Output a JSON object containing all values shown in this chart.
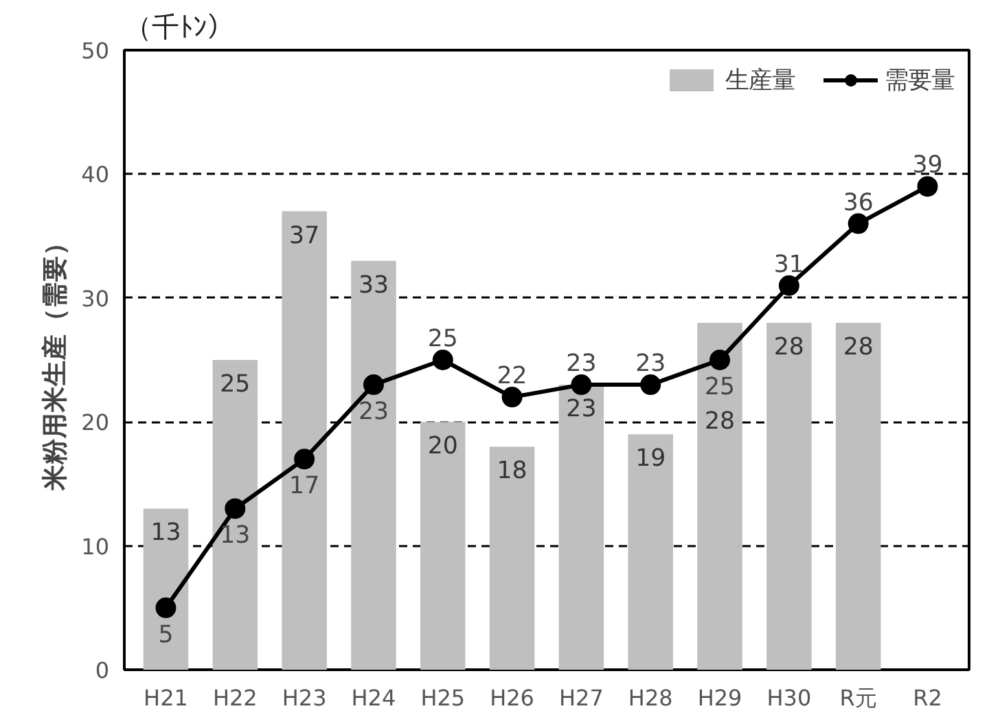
{
  "chart_data": {
    "type": "bar",
    "title": "（千ﾄﾝ）",
    "ylabel": "米粉用米生産（需要）",
    "categories": [
      "H21",
      "H22",
      "H23",
      "H24",
      "H25",
      "H26",
      "H27",
      "H28",
      "H29",
      "H30",
      "R元",
      "R2"
    ],
    "series": [
      {
        "name": "生産量",
        "color": "#bfbfbf",
        "values": [
          13,
          25,
          37,
          33,
          20,
          18,
          23,
          19,
          28,
          28,
          28,
          null
        ]
      },
      {
        "name": "需要量",
        "type": "line",
        "color": "#000000",
        "values": [
          5,
          13,
          17,
          23,
          25,
          22,
          23,
          23,
          25,
          31,
          36,
          39
        ]
      }
    ],
    "ylim": [
      0,
      50
    ],
    "yticks": [
      0,
      10,
      20,
      30,
      40,
      50
    ],
    "grid": "y",
    "legend": "top right",
    "marker": "circle",
    "line_style": "solid",
    "data_labels": true
  }
}
